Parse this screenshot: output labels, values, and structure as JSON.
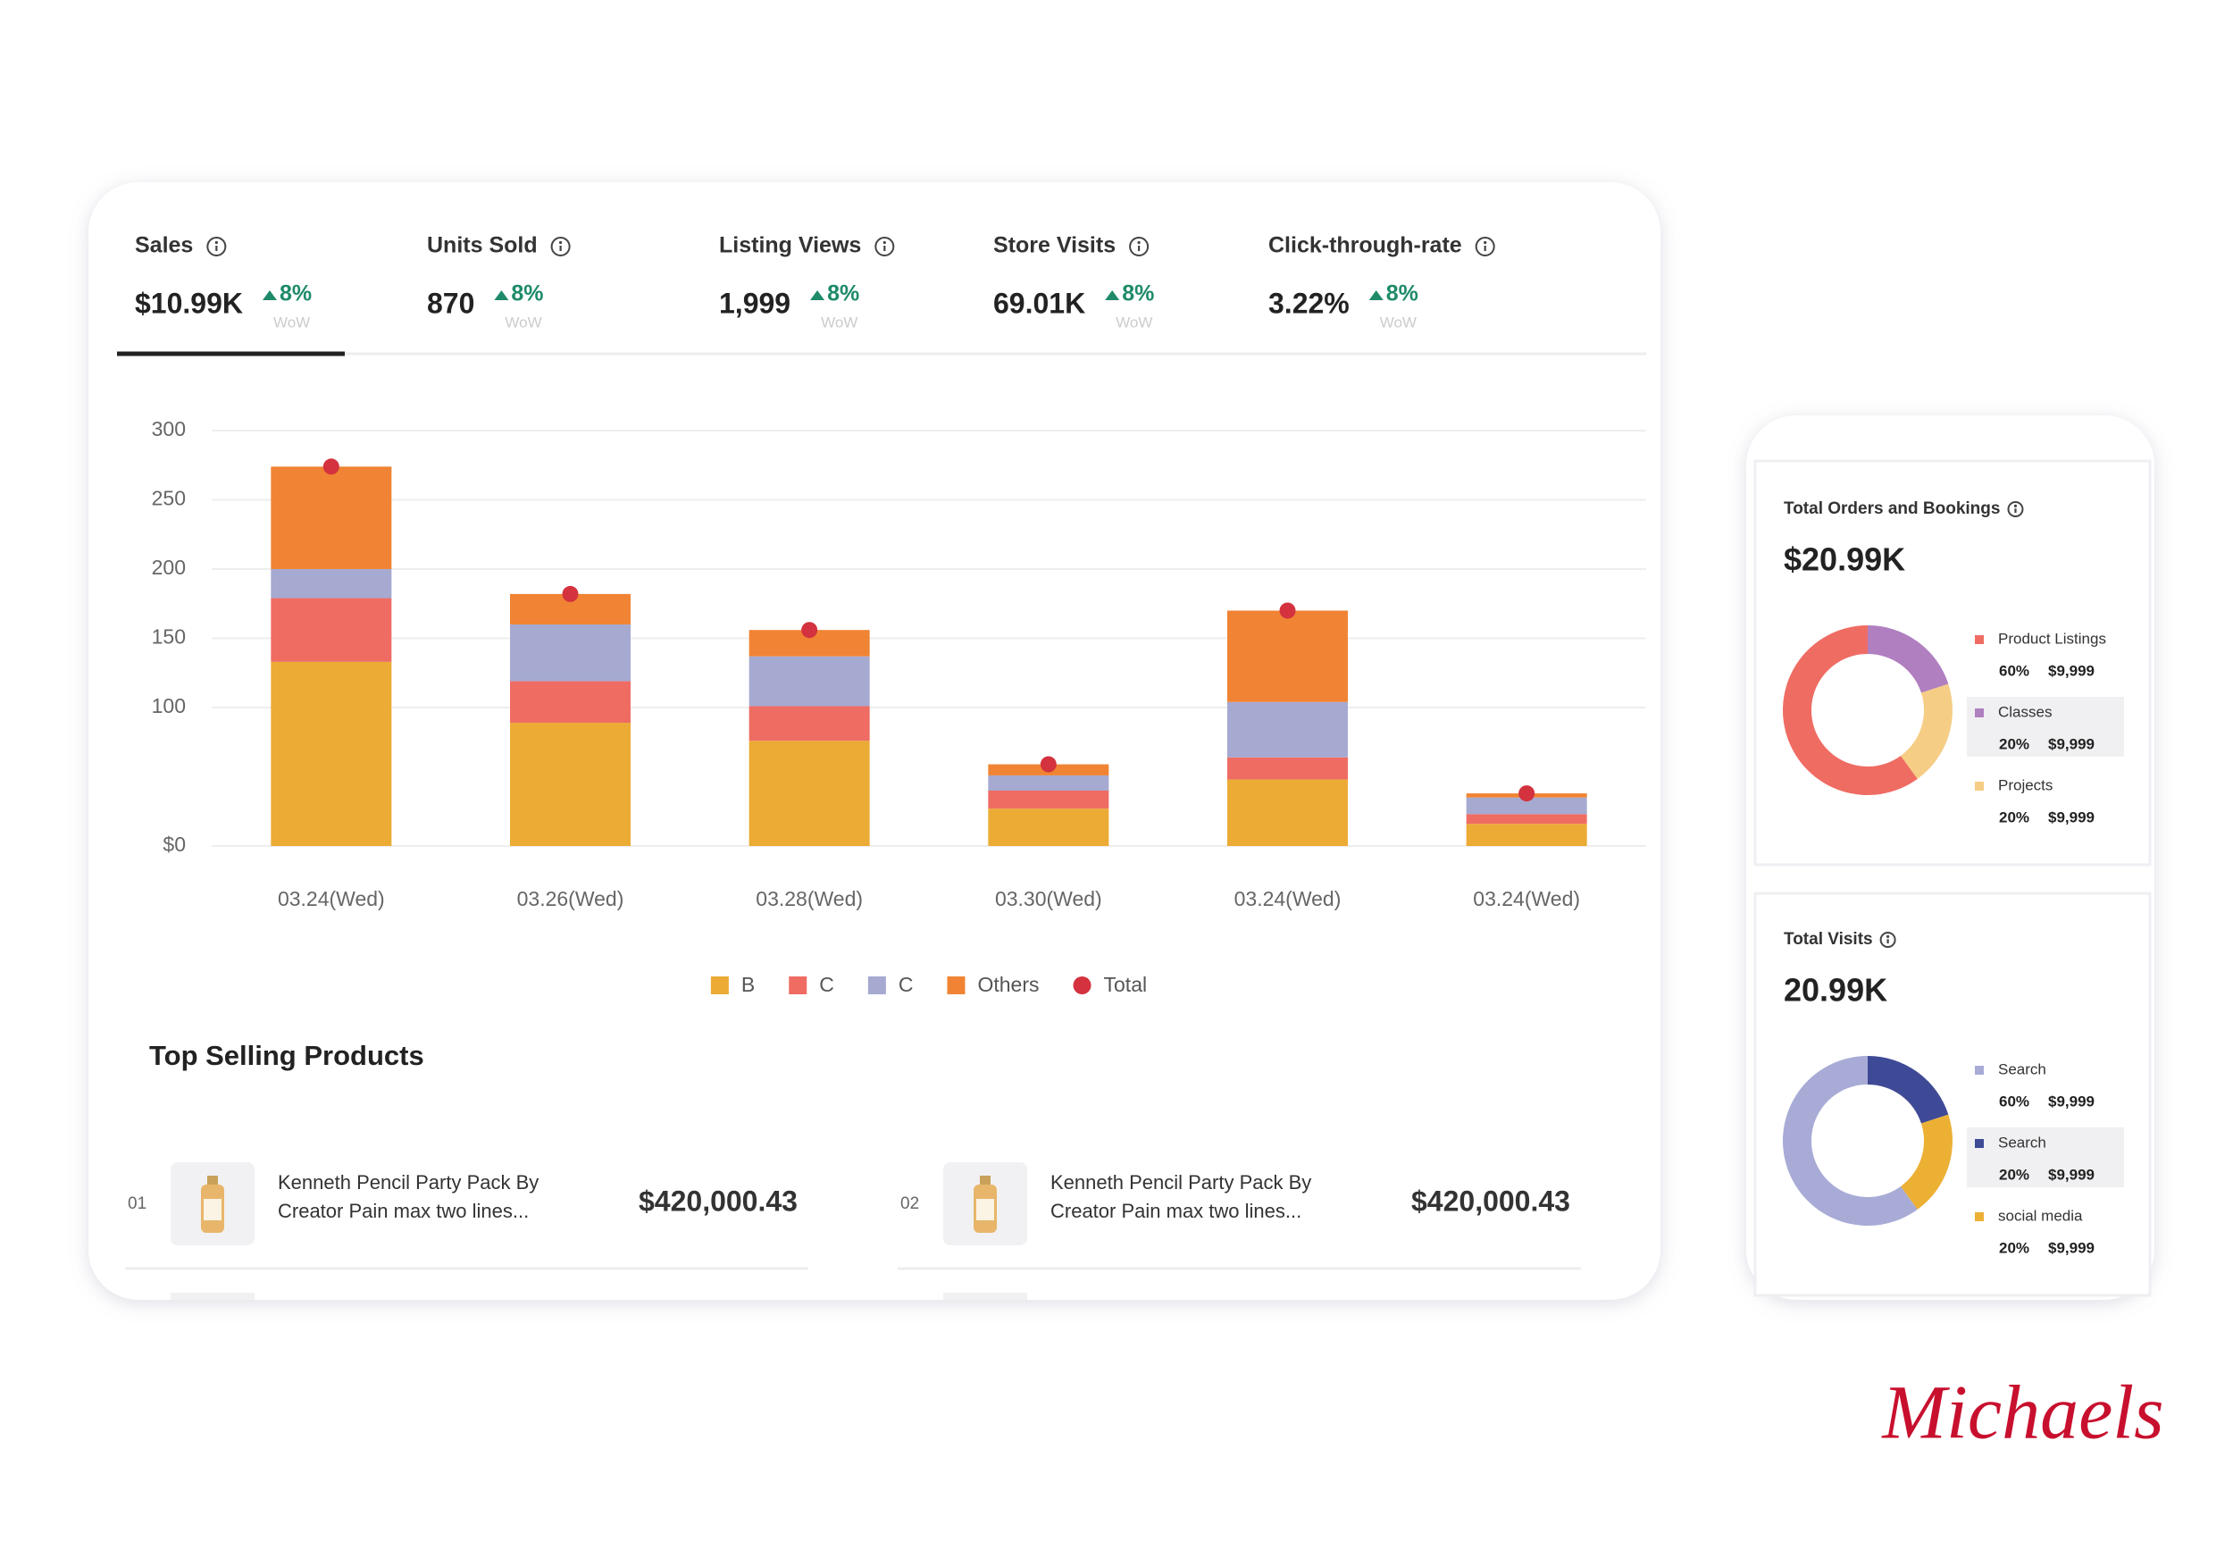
{
  "kpis": [
    {
      "label": "Sales",
      "value": "$10.99K",
      "change": "8%",
      "period": "WoW"
    },
    {
      "label": "Units Sold",
      "value": "870",
      "change": "8%",
      "period": "WoW"
    },
    {
      "label": "Listing Views",
      "value": "1,999",
      "change": "8%",
      "period": "WoW"
    },
    {
      "label": "Store Visits",
      "value": "69.01K",
      "change": "8%",
      "period": "WoW"
    },
    {
      "label": "Click-through-rate",
      "value": "3.22%",
      "change": "8%",
      "period": "WoW"
    }
  ],
  "chart_data": {
    "type": "bar",
    "stacked": true,
    "categories": [
      "03.24(Wed)",
      "03.26(Wed)",
      "03.28(Wed)",
      "03.30(Wed)",
      "03.24(Wed)",
      "03.24(Wed)"
    ],
    "series": [
      {
        "name": "B",
        "color": "#ebab35",
        "values": [
          133,
          89,
          76,
          27,
          48,
          16
        ]
      },
      {
        "name": "C",
        "color": "#ef6c63",
        "values": [
          46,
          30,
          25,
          13,
          16,
          7
        ]
      },
      {
        "name": "C",
        "color": "#a6a9d0",
        "values": [
          21,
          41,
          36,
          11,
          40,
          12
        ]
      },
      {
        "name": "Others",
        "color": "#f08434",
        "values": [
          74,
          22,
          19,
          8,
          66,
          3
        ]
      },
      {
        "name": "Total",
        "type": "line",
        "color": "#d3323e",
        "values": [
          274,
          182,
          156,
          59,
          170,
          38
        ]
      }
    ],
    "ylim": [
      0,
      300
    ],
    "yticks": [
      {
        "value": 0,
        "label": "$0"
      },
      100,
      150,
      200,
      250,
      300
    ],
    "grid": true,
    "legend": "bottom"
  },
  "top_selling": {
    "title": "Top Selling Products",
    "products": [
      {
        "rank": "01",
        "name_lines": [
          "Kenneth Pencil Party Pack By",
          "Creator Pain max two lines..."
        ],
        "price": "$420,000.43"
      },
      {
        "rank": "02",
        "name_lines": [
          "Kenneth Pencil Party Pack By",
          "Creator Pain max two lines..."
        ],
        "price": "$420,000.43"
      }
    ]
  },
  "side_charts": [
    {
      "type": "pie",
      "title": "Total Orders and Bookings",
      "value": "$20.99K",
      "categories": [
        "Product Listings",
        "Classes",
        "Projects"
      ],
      "values": [
        60,
        20,
        20
      ],
      "value_labels": [
        "60%",
        "20%",
        "20%"
      ],
      "amounts": [
        "$9,999",
        "$9,999",
        "$9,999"
      ],
      "colors": [
        "#ef6c63",
        "#b07fc0",
        "#f5cd85"
      ]
    },
    {
      "type": "pie",
      "title": "Total Visits",
      "value": "20.99K",
      "categories": [
        "Search",
        "Search",
        "social media"
      ],
      "values": [
        60,
        20,
        20
      ],
      "value_labels": [
        "60%",
        "20%",
        "20%"
      ],
      "amounts": [
        "$9,999",
        "$9,999",
        "$9,999"
      ],
      "colors": [
        "#a8abd6",
        "#3f4a96",
        "#ecb035"
      ]
    }
  ],
  "brand": "Michaels"
}
